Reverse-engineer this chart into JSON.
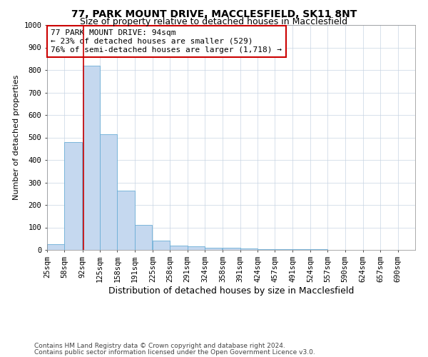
{
  "title": "77, PARK MOUNT DRIVE, MACCLESFIELD, SK11 8NT",
  "subtitle": "Size of property relative to detached houses in Macclesfield",
  "xlabel": "Distribution of detached houses by size in Macclesfield",
  "ylabel": "Number of detached properties",
  "footer1": "Contains HM Land Registry data © Crown copyright and database right 2024.",
  "footer2": "Contains public sector information licensed under the Open Government Licence v3.0.",
  "bins": [
    25,
    58,
    92,
    125,
    158,
    191,
    225,
    258,
    291,
    324,
    358,
    391,
    424,
    457,
    491,
    524,
    557,
    590,
    624,
    657,
    690
  ],
  "bar_heights": [
    25,
    480,
    820,
    515,
    265,
    110,
    40,
    20,
    15,
    10,
    8,
    7,
    4,
    3,
    2,
    2,
    1,
    1,
    1,
    1
  ],
  "bar_color": "#c5d8ef",
  "bar_edgecolor": "#6baed6",
  "property_size": 94,
  "vline_color": "#cc0000",
  "annotation_line1": "77 PARK MOUNT DRIVE: 94sqm",
  "annotation_line2": "← 23% of detached houses are smaller (529)",
  "annotation_line3": "76% of semi-detached houses are larger (1,718) →",
  "annotation_box_edgecolor": "#cc0000",
  "ylim": [
    0,
    1000
  ],
  "yticks": [
    0,
    100,
    200,
    300,
    400,
    500,
    600,
    700,
    800,
    900,
    1000
  ],
  "background_color": "#ffffff",
  "grid_color": "#c8d4e3",
  "title_fontsize": 10,
  "subtitle_fontsize": 9,
  "xlabel_fontsize": 9,
  "ylabel_fontsize": 8,
  "tick_fontsize": 7.5,
  "annotation_fontsize": 8,
  "footer_fontsize": 6.5
}
